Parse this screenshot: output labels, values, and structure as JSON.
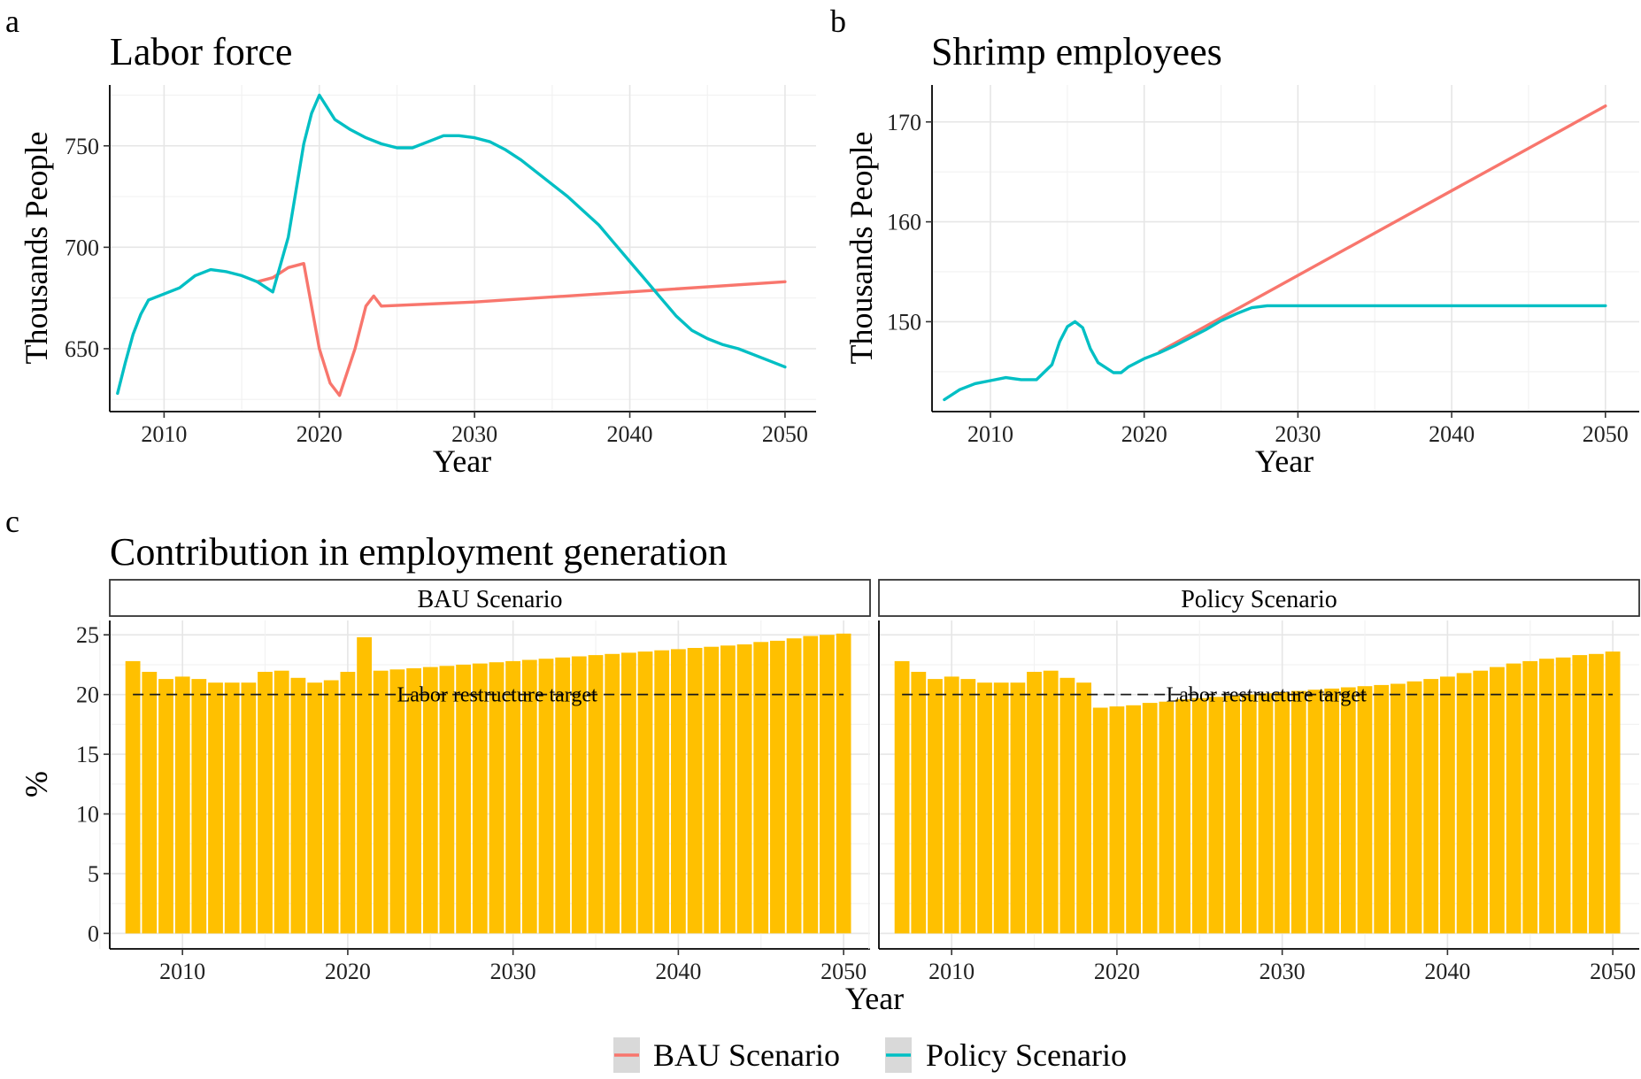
{
  "legend": {
    "items": [
      {
        "label": "BAU Scenario",
        "color": "#F8766D"
      },
      {
        "label": "Policy Scenario",
        "color": "#00BFC4"
      }
    ]
  },
  "chart_data": [
    {
      "panel": "a",
      "type": "line",
      "title": "Labor force",
      "xlabel": "Year",
      "ylabel": "Thousands People",
      "xlim": [
        2006.5,
        2052
      ],
      "ylim": [
        619,
        780
      ],
      "xticks": [
        2010,
        2020,
        2030,
        2040,
        2050
      ],
      "yticks": [
        650,
        700,
        750
      ],
      "grid": true,
      "series": [
        {
          "name": "BAU Scenario",
          "color": "#F8766D",
          "x": [
            2016,
            2017,
            2018,
            2019,
            2020,
            2020.7,
            2021.3,
            2022.3,
            2023,
            2023.5,
            2024,
            2030,
            2040,
            2050
          ],
          "y": [
            683,
            685,
            690,
            692,
            650,
            633,
            627,
            650,
            671,
            676,
            671,
            673,
            678,
            683
          ]
        },
        {
          "name": "Policy Scenario",
          "color": "#00BFC4",
          "x": [
            2007,
            2007.5,
            2008,
            2008.5,
            2009,
            2010,
            2011,
            2012,
            2013,
            2014,
            2015,
            2016,
            2017,
            2018,
            2019,
            2019.5,
            2020,
            2021,
            2022,
            2023,
            2024,
            2025,
            2026,
            2027,
            2028,
            2029,
            2030,
            2031,
            2032,
            2033,
            2034,
            2035,
            2036,
            2037,
            2038,
            2039,
            2040,
            2041,
            2042,
            2043,
            2044,
            2045,
            2046,
            2047,
            2048,
            2049,
            2050
          ],
          "y": [
            628,
            643,
            657,
            667,
            674,
            677,
            680,
            686,
            689,
            688,
            686,
            683,
            678,
            705,
            751,
            766,
            775,
            763,
            758,
            754,
            751,
            749,
            749,
            752,
            755,
            755,
            754,
            752,
            748,
            743,
            737,
            731,
            725,
            718,
            711,
            702,
            693,
            684,
            675,
            666,
            659,
            655,
            652,
            650,
            647,
            644,
            641
          ]
        }
      ]
    },
    {
      "panel": "b",
      "type": "line",
      "title": "Shrimp employees",
      "xlabel": "Year",
      "ylabel": "Thousands People",
      "xlim": [
        2006.2,
        2052.2
      ],
      "ylim": [
        141,
        173.7
      ],
      "xticks": [
        2010,
        2020,
        2030,
        2040,
        2050
      ],
      "yticks": [
        150,
        160,
        170
      ],
      "grid": true,
      "series": [
        {
          "name": "BAU Scenario",
          "color": "#F8766D",
          "x": [
            2021,
            2050
          ],
          "y": [
            147,
            171.6
          ]
        },
        {
          "name": "Policy Scenario",
          "color": "#00BFC4",
          "x": [
            2007,
            2008,
            2009,
            2010,
            2011,
            2012,
            2013,
            2014,
            2014.5,
            2015,
            2015.5,
            2016,
            2016.5,
            2017,
            2018,
            2018.5,
            2019,
            2020,
            2021,
            2022,
            2023,
            2024,
            2025,
            2026,
            2027,
            2028,
            2029,
            2030,
            2040,
            2050
          ],
          "y": [
            142.2,
            143.2,
            143.8,
            144.1,
            144.4,
            144.2,
            144.2,
            145.7,
            148,
            149.5,
            150,
            149.4,
            147.3,
            145.9,
            144.9,
            144.9,
            145.5,
            146.3,
            146.9,
            147.6,
            148.4,
            149.2,
            150.1,
            150.8,
            151.4,
            151.6,
            151.6,
            151.6,
            151.6,
            151.6
          ]
        }
      ]
    },
    {
      "panel": "c",
      "type": "bar",
      "title": "Contribution in employment generation",
      "xlabel": "Year",
      "ylabel": "%",
      "ylim": [
        -1.3,
        26.2
      ],
      "xticks": [
        2010,
        2020,
        2030,
        2040,
        2050
      ],
      "yticks": [
        0,
        5,
        10,
        15,
        20,
        25
      ],
      "bar_color": "#FFC000",
      "target": {
        "value": 20,
        "label": "Labor restructure target"
      },
      "facets": [
        {
          "strip": "BAU Scenario",
          "years": [
            2007,
            2008,
            2009,
            2010,
            2011,
            2012,
            2013,
            2014,
            2015,
            2016,
            2017,
            2018,
            2019,
            2020,
            2021,
            2022,
            2023,
            2024,
            2025,
            2026,
            2027,
            2028,
            2029,
            2030,
            2031,
            2032,
            2033,
            2034,
            2035,
            2036,
            2037,
            2038,
            2039,
            2040,
            2041,
            2042,
            2043,
            2044,
            2045,
            2046,
            2047,
            2048,
            2049,
            2050
          ],
          "values": [
            22.8,
            21.9,
            21.3,
            21.5,
            21.3,
            21.0,
            21.0,
            21.0,
            21.9,
            22.0,
            21.4,
            21.0,
            21.2,
            21.9,
            24.8,
            22.0,
            22.1,
            22.2,
            22.3,
            22.4,
            22.5,
            22.6,
            22.7,
            22.8,
            22.9,
            23.0,
            23.1,
            23.2,
            23.3,
            23.4,
            23.5,
            23.6,
            23.7,
            23.8,
            23.9,
            24.0,
            24.1,
            24.2,
            24.4,
            24.5,
            24.7,
            24.9,
            25.0,
            25.1
          ]
        },
        {
          "strip": "Policy Scenario",
          "years": [
            2007,
            2008,
            2009,
            2010,
            2011,
            2012,
            2013,
            2014,
            2015,
            2016,
            2017,
            2018,
            2019,
            2020,
            2021,
            2022,
            2023,
            2024,
            2025,
            2026,
            2027,
            2028,
            2029,
            2030,
            2031,
            2032,
            2033,
            2034,
            2035,
            2036,
            2037,
            2038,
            2039,
            2040,
            2041,
            2042,
            2043,
            2044,
            2045,
            2046,
            2047,
            2048,
            2049,
            2050
          ],
          "values": [
            22.8,
            21.9,
            21.3,
            21.5,
            21.3,
            21.0,
            21.0,
            21.0,
            21.9,
            22.0,
            21.4,
            21.0,
            18.9,
            19.0,
            19.1,
            19.3,
            19.4,
            19.6,
            19.7,
            19.8,
            19.9,
            20.0,
            20.1,
            20.2,
            20.3,
            20.4,
            20.5,
            20.6,
            20.7,
            20.8,
            20.9,
            21.1,
            21.3,
            21.5,
            21.8,
            22.0,
            22.3,
            22.6,
            22.8,
            23.0,
            23.1,
            23.3,
            23.4,
            23.6
          ]
        }
      ]
    }
  ]
}
